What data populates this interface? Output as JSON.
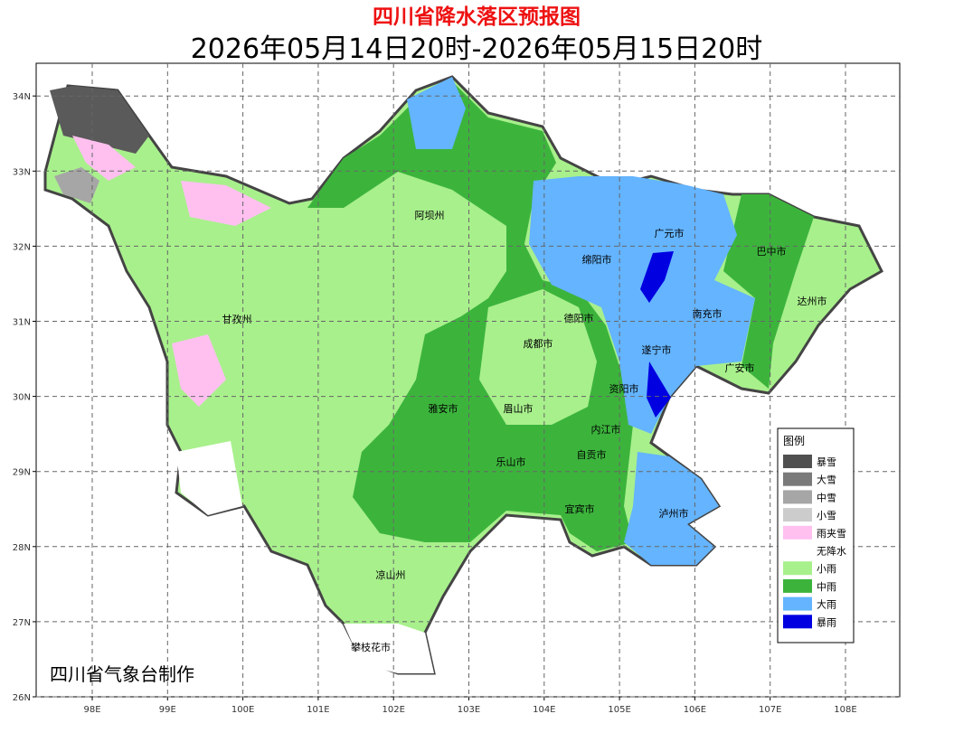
{
  "title": "四川省降水落区预报图",
  "subtitle": "2026年05月14日20时-2026年05月15日20时",
  "credit": "四川省气象台制作",
  "axes": {
    "x_labels": [
      "98E",
      "99E",
      "100E",
      "101E",
      "102E",
      "103E",
      "104E",
      "105E",
      "106E",
      "107E",
      "108E"
    ],
    "y_labels": [
      "26N",
      "27N",
      "28N",
      "29N",
      "30N",
      "31N",
      "32N",
      "33N",
      "34N"
    ]
  },
  "cities": [
    "阿坝州",
    "广元市",
    "巴中市",
    "绵阳市",
    "达州市",
    "甘孜州",
    "德阳市",
    "南充市",
    "成都市",
    "遂宁市",
    "广安市",
    "资阳市",
    "雅安市",
    "眉山市",
    "内江市",
    "自贡市",
    "乐山市",
    "宜宾市",
    "泸州市",
    "凉山州",
    "攀枝花市"
  ],
  "legend": {
    "title": "图例",
    "items": [
      {
        "label": "暴雪",
        "color": "#505050"
      },
      {
        "label": "大雪",
        "color": "#7a7a7a"
      },
      {
        "label": "中雪",
        "color": "#a6a6a6"
      },
      {
        "label": "小雪",
        "color": "#cccccc"
      },
      {
        "label": "雨夹雪",
        "color": "#ffc0f0"
      },
      {
        "label": "无降水",
        "color": "#ffffff"
      },
      {
        "label": "小雨",
        "color": "#a8f08c"
      },
      {
        "label": "中雨",
        "color": "#3cb43c"
      },
      {
        "label": "大雨",
        "color": "#64b4ff"
      },
      {
        "label": "暴雨",
        "color": "#0000e0"
      }
    ]
  }
}
